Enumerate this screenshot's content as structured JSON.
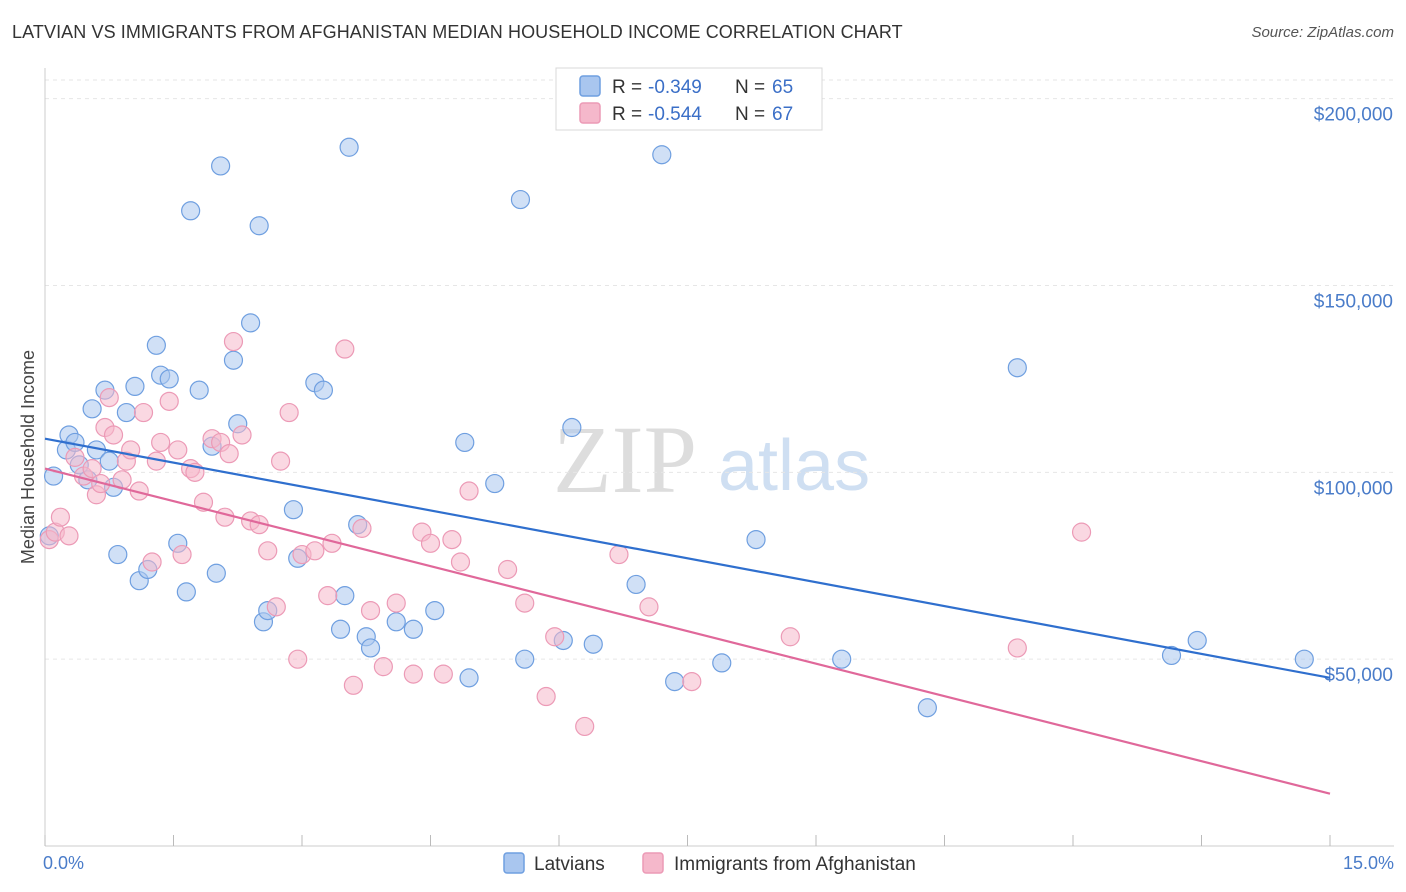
{
  "title": "LATVIAN VS IMMIGRANTS FROM AFGHANISTAN MEDIAN HOUSEHOLD INCOME CORRELATION CHART",
  "source": "Source: ZipAtlas.com",
  "watermark": {
    "zip": "ZIP",
    "atlas": "atlas"
  },
  "legend": {
    "items": [
      {
        "r_label": "R =",
        "r_value": "-0.349",
        "n_label": "N =",
        "n_value": "65",
        "color": "#a9c6ef"
      },
      {
        "r_label": "R =",
        "r_value": "-0.544",
        "n_label": "N =",
        "n_value": "67",
        "color": "#f5b8cb"
      }
    ]
  },
  "bottom_legend": [
    {
      "label": "Latvians",
      "color": "#a9c6ef"
    },
    {
      "label": "Immigrants from Afghanistan",
      "color": "#f5b8cb"
    }
  ],
  "chart_data": {
    "type": "scatter",
    "title": "LATVIAN VS IMMIGRANTS FROM AFGHANISTAN MEDIAN HOUSEHOLD INCOME CORRELATION CHART",
    "xlabel": "",
    "ylabel": "Median Household Income",
    "xlim": [
      0,
      15
    ],
    "ylim": [
      0,
      205000
    ],
    "x_tick_labels": [
      "0.0%",
      "15.0%"
    ],
    "y_ticks": [
      50000,
      100000,
      150000,
      200000
    ],
    "y_tick_labels": [
      "$50,000",
      "$100,000",
      "$150,000",
      "$200,000"
    ],
    "grid": true,
    "legend_position": "top-center",
    "series": [
      {
        "name": "Latvians",
        "color": "#6f9fe0",
        "fill": "#a9c6ef",
        "trend_color": "#2f6fce",
        "trend": {
          "x0": 0.0,
          "y0": 109000,
          "x1": 15.0,
          "y1": 45000
        },
        "points": [
          [
            0.1,
            99000
          ],
          [
            0.25,
            106000
          ],
          [
            0.28,
            110000
          ],
          [
            0.35,
            108000
          ],
          [
            0.4,
            102000
          ],
          [
            0.5,
            98000
          ],
          [
            0.55,
            117000
          ],
          [
            0.6,
            106000
          ],
          [
            0.7,
            122000
          ],
          [
            0.75,
            103000
          ],
          [
            0.8,
            96000
          ],
          [
            0.85,
            78000
          ],
          [
            0.95,
            116000
          ],
          [
            1.05,
            123000
          ],
          [
            1.1,
            71000
          ],
          [
            1.2,
            74000
          ],
          [
            1.3,
            134000
          ],
          [
            1.35,
            126000
          ],
          [
            1.45,
            125000
          ],
          [
            1.55,
            81000
          ],
          [
            1.65,
            68000
          ],
          [
            1.7,
            170000
          ],
          [
            1.8,
            122000
          ],
          [
            1.95,
            107000
          ],
          [
            2.0,
            73000
          ],
          [
            2.05,
            182000
          ],
          [
            2.2,
            130000
          ],
          [
            2.25,
            113000
          ],
          [
            2.4,
            140000
          ],
          [
            2.5,
            166000
          ],
          [
            2.55,
            60000
          ],
          [
            2.6,
            63000
          ],
          [
            2.9,
            90000
          ],
          [
            2.95,
            77000
          ],
          [
            3.15,
            124000
          ],
          [
            3.25,
            122000
          ],
          [
            3.45,
            58000
          ],
          [
            3.5,
            67000
          ],
          [
            3.55,
            187000
          ],
          [
            3.65,
            86000
          ],
          [
            3.75,
            56000
          ],
          [
            3.8,
            53000
          ],
          [
            4.1,
            60000
          ],
          [
            4.3,
            58000
          ],
          [
            4.55,
            63000
          ],
          [
            4.9,
            108000
          ],
          [
            4.95,
            45000
          ],
          [
            5.25,
            97000
          ],
          [
            5.55,
            173000
          ],
          [
            5.6,
            50000
          ],
          [
            6.05,
            55000
          ],
          [
            6.15,
            112000
          ],
          [
            6.4,
            54000
          ],
          [
            6.9,
            70000
          ],
          [
            7.2,
            185000
          ],
          [
            7.35,
            44000
          ],
          [
            7.9,
            49000
          ],
          [
            8.3,
            82000
          ],
          [
            9.3,
            50000
          ],
          [
            10.3,
            37000
          ],
          [
            11.35,
            128000
          ],
          [
            13.15,
            51000
          ],
          [
            13.45,
            55000
          ],
          [
            14.7,
            50000
          ],
          [
            0.05,
            83000
          ]
        ]
      },
      {
        "name": "Immigrants from Afghanistan",
        "color": "#ec9ab6",
        "fill": "#f5b8cb",
        "trend_color": "#e0689a",
        "trend": {
          "x0": 0.0,
          "y0": 101000,
          "x1": 15.0,
          "y1": 14000
        },
        "points": [
          [
            0.05,
            82000
          ],
          [
            0.12,
            84000
          ],
          [
            0.18,
            88000
          ],
          [
            0.28,
            83000
          ],
          [
            0.35,
            104000
          ],
          [
            0.45,
            99000
          ],
          [
            0.55,
            101000
          ],
          [
            0.6,
            94000
          ],
          [
            0.7,
            112000
          ],
          [
            0.75,
            120000
          ],
          [
            0.8,
            110000
          ],
          [
            0.9,
            98000
          ],
          [
            0.95,
            103000
          ],
          [
            1.0,
            106000
          ],
          [
            1.1,
            95000
          ],
          [
            1.15,
            116000
          ],
          [
            1.25,
            76000
          ],
          [
            1.35,
            108000
          ],
          [
            1.45,
            119000
          ],
          [
            1.55,
            106000
          ],
          [
            1.6,
            78000
          ],
          [
            1.7,
            101000
          ],
          [
            1.75,
            100000
          ],
          [
            1.85,
            92000
          ],
          [
            1.95,
            109000
          ],
          [
            2.05,
            108000
          ],
          [
            2.15,
            105000
          ],
          [
            2.2,
            135000
          ],
          [
            2.3,
            110000
          ],
          [
            2.4,
            87000
          ],
          [
            2.5,
            86000
          ],
          [
            2.6,
            79000
          ],
          [
            2.7,
            64000
          ],
          [
            2.75,
            103000
          ],
          [
            2.85,
            116000
          ],
          [
            2.95,
            50000
          ],
          [
            3.0,
            78000
          ],
          [
            3.15,
            79000
          ],
          [
            3.3,
            67000
          ],
          [
            3.35,
            81000
          ],
          [
            3.5,
            133000
          ],
          [
            3.6,
            43000
          ],
          [
            3.7,
            85000
          ],
          [
            3.8,
            63000
          ],
          [
            3.95,
            48000
          ],
          [
            4.1,
            65000
          ],
          [
            4.3,
            46000
          ],
          [
            4.4,
            84000
          ],
          [
            4.5,
            81000
          ],
          [
            4.65,
            46000
          ],
          [
            4.75,
            82000
          ],
          [
            4.85,
            76000
          ],
          [
            4.95,
            95000
          ],
          [
            5.4,
            74000
          ],
          [
            5.6,
            65000
          ],
          [
            5.85,
            40000
          ],
          [
            5.95,
            56000
          ],
          [
            6.3,
            32000
          ],
          [
            6.7,
            78000
          ],
          [
            7.05,
            64000
          ],
          [
            7.55,
            44000
          ],
          [
            8.7,
            56000
          ],
          [
            11.35,
            53000
          ],
          [
            12.1,
            84000
          ],
          [
            0.65,
            97000
          ],
          [
            1.3,
            103000
          ],
          [
            2.1,
            88000
          ]
        ]
      }
    ]
  }
}
